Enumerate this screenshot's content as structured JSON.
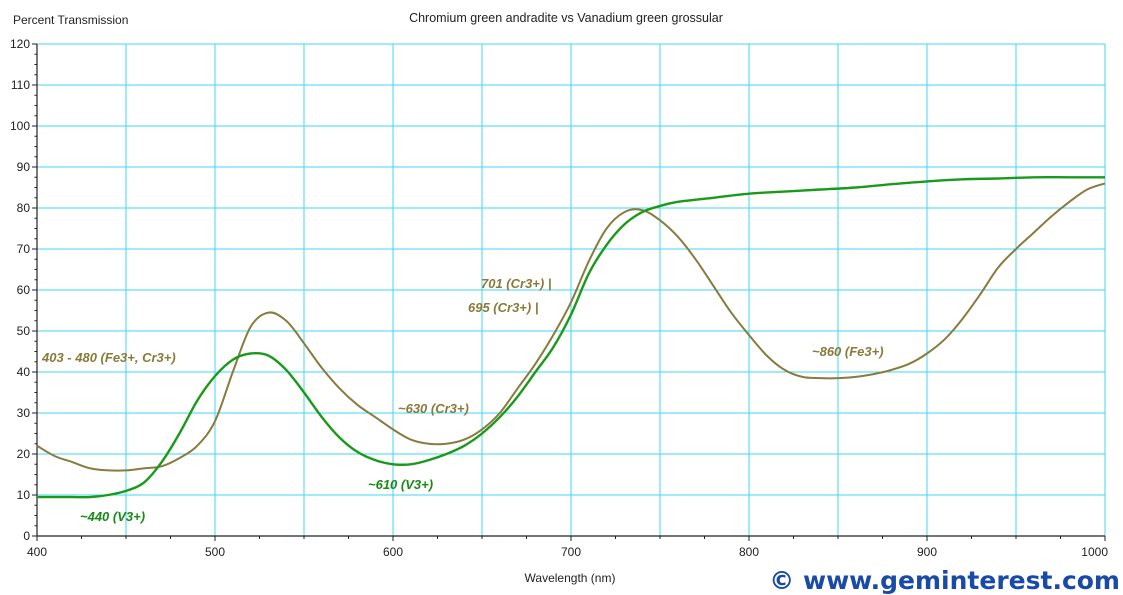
{
  "colors": {
    "grid": "#3fd8f0",
    "axis": "#222222",
    "andradite": "#8a7a3e",
    "grossular": "#1a9a1a",
    "andradite_text": "#8a7a3a",
    "grossular_text": "#178a17",
    "watermark": "#1a4aa8"
  },
  "watermark": "© www.geminterest.com",
  "chart_data": {
    "type": "line",
    "title": "Chromium green andradite vs Vanadium green grossular",
    "ylabel": "Percent Transmission",
    "xlabel": "Wavelength (nm)",
    "xlim": [
      400,
      1000
    ],
    "ylim": [
      0,
      120
    ],
    "x_ticks": [
      "400",
      "500",
      "600",
      "700",
      "800",
      "900",
      "1000"
    ],
    "y_ticks": [
      "0",
      "10",
      "20",
      "30",
      "40",
      "50",
      "60",
      "70",
      "80",
      "90",
      "100",
      "110",
      "120"
    ],
    "grid": true,
    "series": [
      {
        "key": "andradite",
        "x": [
          400,
          410,
          420,
          430,
          440,
          450,
          460,
          470,
          480,
          490,
          500,
          510,
          520,
          530,
          540,
          550,
          560,
          570,
          580,
          590,
          600,
          610,
          620,
          630,
          640,
          650,
          660,
          670,
          680,
          690,
          700,
          710,
          720,
          730,
          740,
          750,
          760,
          770,
          780,
          790,
          800,
          810,
          820,
          830,
          840,
          850,
          860,
          870,
          880,
          890,
          900,
          910,
          920,
          930,
          940,
          950,
          960,
          970,
          980,
          990,
          1000
        ],
        "values": [
          22,
          19.5,
          18,
          16.5,
          16,
          16,
          16.5,
          17,
          19,
          22,
          28,
          40,
          51,
          54.5,
          52.5,
          47,
          41,
          36,
          32,
          29,
          26,
          23.5,
          22.5,
          22.5,
          23.5,
          26,
          30,
          36,
          42,
          49,
          57,
          67,
          75,
          79,
          79.5,
          77,
          73,
          67.5,
          61,
          54.5,
          49,
          44,
          40.5,
          38.8,
          38.5,
          38.5,
          38.8,
          39.5,
          40.5,
          42,
          44.5,
          48,
          53,
          59,
          65.5,
          70,
          74,
          78,
          81.5,
          84.5,
          86
        ]
      },
      {
        "key": "grossular",
        "x": [
          400,
          410,
          420,
          430,
          440,
          450,
          460,
          470,
          480,
          490,
          500,
          510,
          520,
          530,
          540,
          550,
          560,
          570,
          580,
          590,
          600,
          610,
          620,
          630,
          640,
          650,
          660,
          670,
          680,
          690,
          700,
          710,
          720,
          730,
          740,
          750,
          760,
          780,
          800,
          820,
          840,
          860,
          880,
          900,
          920,
          940,
          960,
          980,
          1000
        ],
        "values": [
          9.5,
          9.5,
          9.5,
          9.5,
          10,
          11,
          13,
          18,
          25,
          33,
          39,
          43,
          44.5,
          44,
          40.5,
          35,
          29,
          24,
          20.5,
          18.5,
          17.5,
          17.5,
          18.5,
          20,
          22,
          25,
          29,
          34,
          40,
          46,
          54,
          64,
          71,
          76,
          79,
          80.5,
          81.5,
          82.5,
          83.5,
          84,
          84.5,
          85,
          85.8,
          86.5,
          87,
          87.2,
          87.5,
          87.5,
          87.5
        ]
      }
    ],
    "annotations": [
      {
        "text": "403 - 480 (Fe3+, Cr3+)",
        "series": "andradite"
      },
      {
        "text": "~440 (V3+)",
        "series": "grossular"
      },
      {
        "text": "~630 (Cr3+)",
        "series": "andradite"
      },
      {
        "text": "~610 (V3+)",
        "series": "grossular"
      },
      {
        "text": "701 (Cr3+) |",
        "series": "andradite"
      },
      {
        "text": "695 (Cr3+) |",
        "series": "andradite"
      },
      {
        "text": "~860 (Fe3+)",
        "series": "andradite"
      }
    ]
  }
}
